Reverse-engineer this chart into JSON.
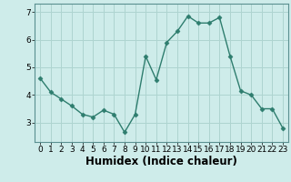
{
  "xlabel": "Humidex (Indice chaleur)",
  "x_values": [
    0,
    1,
    2,
    3,
    4,
    5,
    6,
    7,
    8,
    9,
    10,
    11,
    12,
    13,
    14,
    15,
    16,
    17,
    18,
    19,
    20,
    21,
    22,
    23
  ],
  "y_values": [
    4.6,
    4.1,
    3.85,
    3.6,
    3.3,
    3.2,
    3.45,
    3.3,
    2.65,
    3.3,
    5.4,
    4.55,
    5.9,
    6.3,
    6.85,
    6.6,
    6.6,
    6.8,
    5.4,
    4.15,
    4.0,
    3.5,
    3.5,
    2.8
  ],
  "line_color": "#2e7d6e",
  "marker": "D",
  "marker_size": 2.5,
  "background_color": "#ceecea",
  "grid_color": "#aed4d0",
  "ylim": [
    2.3,
    7.3
  ],
  "yticks": [
    3,
    4,
    5,
    6,
    7
  ],
  "xticks": [
    0,
    1,
    2,
    3,
    4,
    5,
    6,
    7,
    8,
    9,
    10,
    11,
    12,
    13,
    14,
    15,
    16,
    17,
    18,
    19,
    20,
    21,
    22,
    23
  ],
  "tick_fontsize": 6.5,
  "xlabel_fontsize": 8.5,
  "linewidth": 1.0
}
